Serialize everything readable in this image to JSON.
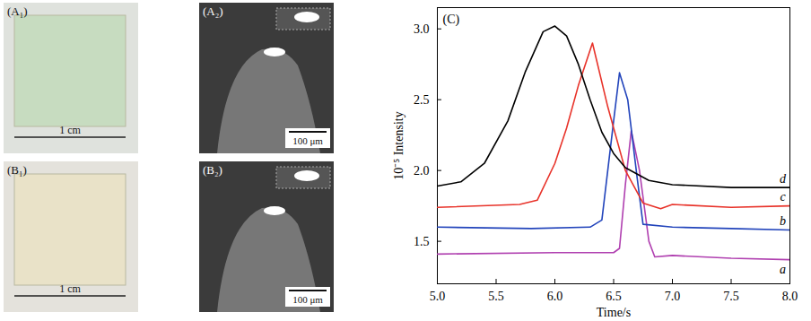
{
  "photo_panels": [
    {
      "label": "(A₁)",
      "scale_bar": "1 cm"
    },
    {
      "label": "(A₂)",
      "scale_bar": "100 μm"
    },
    {
      "label": "(B₁)",
      "scale_bar": "1 cm"
    },
    {
      "label": "(B₂)",
      "scale_bar": "100 μm"
    }
  ],
  "chart_data": {
    "type": "line",
    "title": "(C)",
    "x_label": "Time/s",
    "y_label": "10⁻⁵ Intensity",
    "xlim": [
      5.0,
      8.0
    ],
    "xticks": [
      {
        "value": 5,
        "label": "5.0"
      },
      5.5,
      {
        "value": 6,
        "label": "6.0"
      },
      6.5,
      {
        "value": 7,
        "label": "7.0"
      },
      7.5,
      {
        "value": 8,
        "label": "8.0"
      }
    ],
    "ylim": [
      1.2,
      3.15
    ],
    "yticks": [
      1.5,
      {
        "value": 2,
        "label": "2.0"
      },
      2.5,
      {
        "value": 3,
        "label": "3.0"
      }
    ],
    "series": [
      {
        "name": "a",
        "color": "#b040b0",
        "x": [
          5.0,
          6.0,
          6.5,
          6.55,
          6.6,
          6.65,
          6.72,
          6.8,
          6.85,
          7.0,
          7.5,
          8.0
        ],
        "values": [
          1.41,
          1.42,
          1.42,
          1.45,
          1.9,
          2.28,
          2.0,
          1.5,
          1.39,
          1.4,
          1.38,
          1.37
        ]
      },
      {
        "name": "b",
        "color": "#2244bb",
        "x": [
          5.0,
          5.8,
          6.3,
          6.4,
          6.5,
          6.55,
          6.62,
          6.7,
          6.75,
          7.0,
          7.5,
          8.0
        ],
        "values": [
          1.6,
          1.59,
          1.6,
          1.65,
          2.35,
          2.69,
          2.5,
          1.95,
          1.62,
          1.6,
          1.59,
          1.58
        ]
      },
      {
        "name": "c",
        "color": "#e8332a",
        "x": [
          5.0,
          5.7,
          5.85,
          6.0,
          6.1,
          6.2,
          6.32,
          6.45,
          6.6,
          6.75,
          6.9,
          7.0,
          7.5,
          8.0
        ],
        "values": [
          1.74,
          1.76,
          1.79,
          2.05,
          2.3,
          2.6,
          2.9,
          2.45,
          2.0,
          1.77,
          1.73,
          1.76,
          1.74,
          1.75
        ]
      },
      {
        "name": "d",
        "color": "#000000",
        "x": [
          5.0,
          5.2,
          5.4,
          5.6,
          5.75,
          5.9,
          6.0,
          6.1,
          6.2,
          6.3,
          6.4,
          6.5,
          6.6,
          6.8,
          7.0,
          7.5,
          8.0
        ],
        "values": [
          1.89,
          1.92,
          2.05,
          2.35,
          2.7,
          2.98,
          3.02,
          2.95,
          2.75,
          2.5,
          2.27,
          2.12,
          2.02,
          1.93,
          1.9,
          1.88,
          1.88
        ]
      }
    ]
  }
}
